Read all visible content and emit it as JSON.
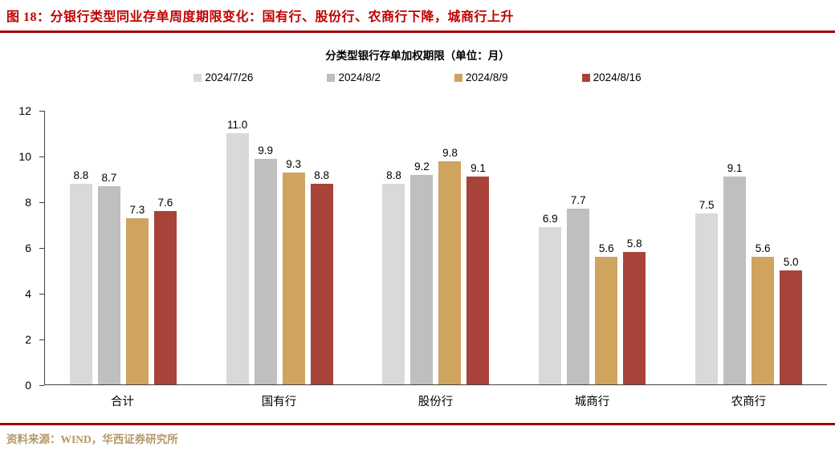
{
  "header": {
    "title": "图 18：分银行类型同业存单周度期限变化：国有行、股份行、农商行下降，城商行上升"
  },
  "footer": {
    "source": "资料来源：WIND，华西证券研究所"
  },
  "colors": {
    "title_red": "#C00000",
    "rule_red": "#A00000",
    "source_tan": "#B5986A",
    "axis": "#404040"
  },
  "chart_data": {
    "type": "bar",
    "title": "分类型银行存单加权期限（单位：月）",
    "categories": [
      "合计",
      "国有行",
      "股份行",
      "城商行",
      "农商行"
    ],
    "series": [
      {
        "name": "2024/7/26",
        "color": "#D9D9D9",
        "values": [
          8.8,
          11.0,
          8.8,
          6.9,
          7.5
        ]
      },
      {
        "name": "2024/8/2",
        "color": "#BFBFBF",
        "values": [
          8.7,
          9.9,
          9.2,
          7.7,
          9.1
        ]
      },
      {
        "name": "2024/8/9",
        "color": "#CFA45E",
        "values": [
          7.3,
          9.3,
          9.8,
          5.6,
          5.6
        ]
      },
      {
        "name": "2024/8/16",
        "color": "#A8433A",
        "values": [
          7.6,
          8.8,
          9.1,
          5.8,
          5.0
        ]
      }
    ],
    "ylim": [
      0,
      12
    ],
    "ytick_step": 2,
    "value_label_decimals": 1,
    "legend_position": "top",
    "grid": false
  }
}
